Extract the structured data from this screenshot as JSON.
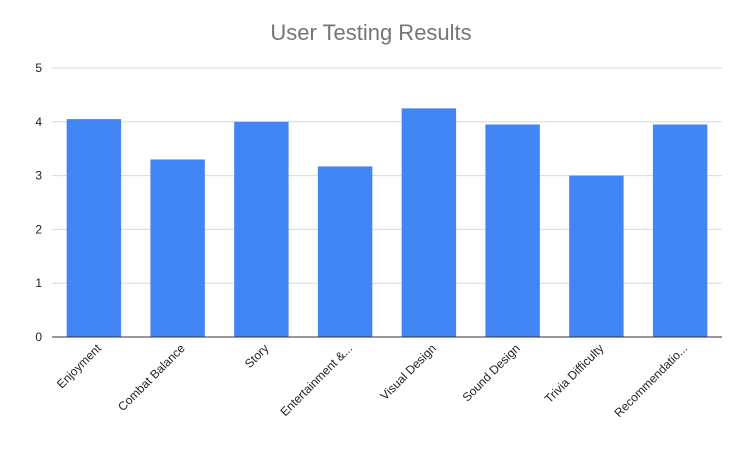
{
  "chart_data": {
    "type": "bar",
    "title": "User Testing Results",
    "xlabel": "",
    "ylabel": "",
    "categories": [
      "Enjoyment",
      "Combat Balance",
      "Story",
      "Entertainment &...",
      "Visual Design",
      "Sound Design",
      "Trivia Difficulty",
      "Recommendatio..."
    ],
    "values": [
      4.05,
      3.3,
      4.0,
      3.17,
      4.25,
      3.95,
      3.0,
      3.95
    ],
    "ylim": [
      0,
      5
    ],
    "yticks": [
      "0",
      "1",
      "2",
      "3",
      "4",
      "5"
    ],
    "grid": true,
    "legend": "none",
    "colors": {
      "bar": "#4285f4",
      "grid": "#d9d9d9",
      "axis": "#333333",
      "title": "#757575"
    }
  }
}
